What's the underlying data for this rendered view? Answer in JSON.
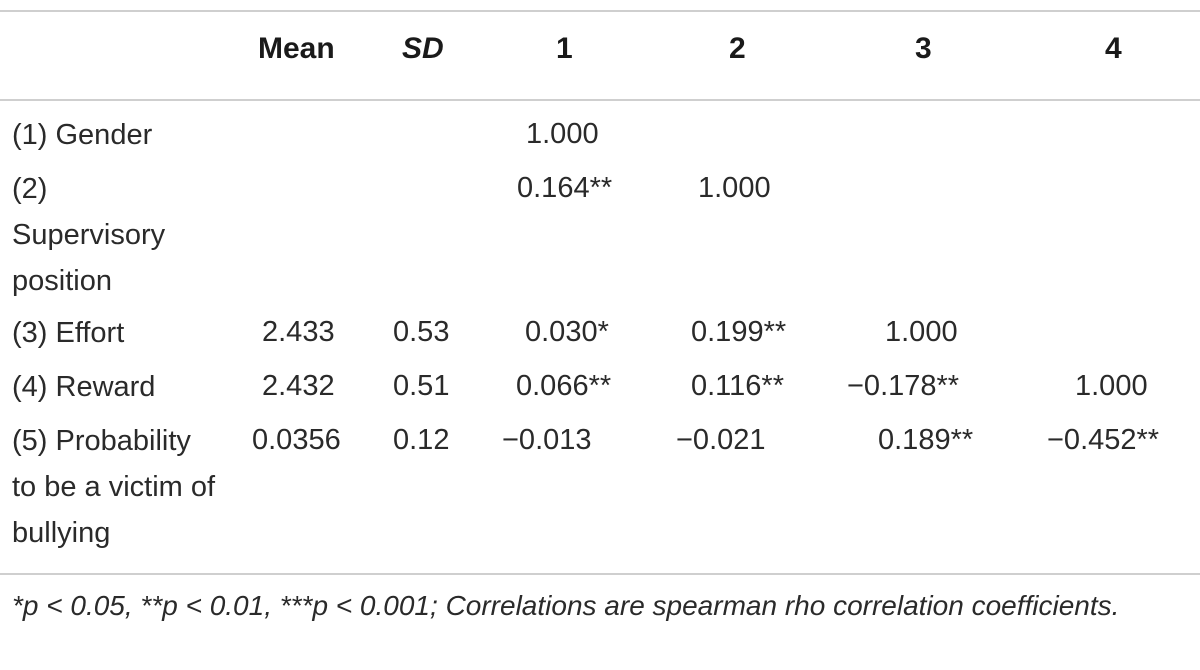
{
  "table": {
    "headers": [
      "Mean",
      "SD",
      "1",
      "2",
      "3",
      "4"
    ],
    "rows": [
      {
        "label": "(1) Gender",
        "mean": "",
        "sd": "",
        "c1": "1.000",
        "c2": "",
        "c3": "",
        "c4": ""
      },
      {
        "label": "(2) Supervisory position",
        "mean": "",
        "sd": "",
        "c1": "0.164**",
        "c2": "1.000",
        "c3": "",
        "c4": ""
      },
      {
        "label": "(3) Effort",
        "mean": "2.433",
        "sd": "0.53",
        "c1": "0.030*",
        "c2": "0.199**",
        "c3": "1.000",
        "c4": ""
      },
      {
        "label": "(4) Reward",
        "mean": "2.432",
        "sd": "0.51",
        "c1": "0.066**",
        "c2": "0.116**",
        "c3": "−0.178**",
        "c4": "1.000"
      },
      {
        "label": "(5) Probability to be a victim of bullying",
        "mean": "0.0356",
        "sd": "0.12",
        "c1": "−0.013",
        "c2": "−0.021",
        "c3": "0.189**",
        "c4": "−0.452**"
      }
    ],
    "footnote": "*p < 0.05, **p < 0.01, ***p < 0.001; Correlations are spearman rho correlation coefficients."
  }
}
